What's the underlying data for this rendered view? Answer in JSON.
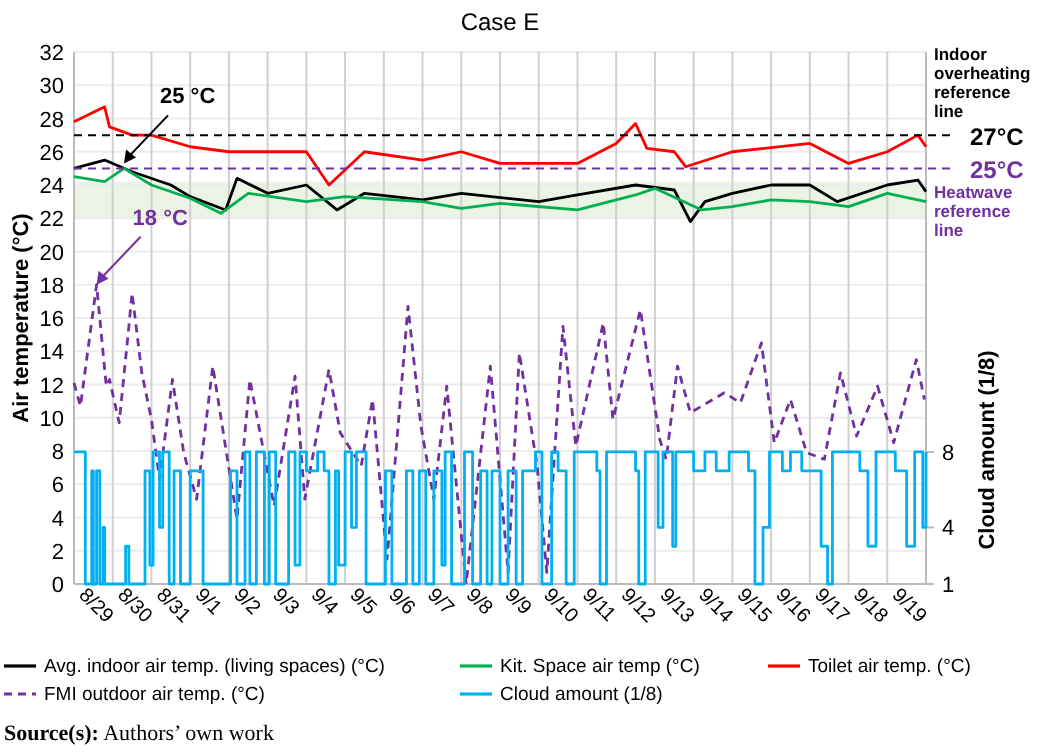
{
  "chart_data": {
    "type": "line",
    "title": "Case E",
    "ylabel": "Air temperature (°C)",
    "y2label": "Cloud amount (1/8)",
    "xlim": [
      "--08-29",
      "--09-20"
    ],
    "xticks": [
      {
        "value": "--08-29",
        "label": "8/29"
      },
      {
        "value": "--08-30",
        "label": "8/30"
      },
      {
        "value": "--08-31",
        "label": "8/31"
      },
      {
        "value": "--09-01",
        "label": "9/1"
      },
      {
        "value": "--09-02",
        "label": "9/2"
      },
      {
        "value": "--09-03",
        "label": "9/3"
      },
      {
        "value": "--09-04",
        "label": "9/4"
      },
      {
        "value": "--09-05",
        "label": "9/5"
      },
      {
        "value": "--09-06",
        "label": "9/6"
      },
      {
        "value": "--09-07",
        "label": "9/7"
      },
      {
        "value": "--09-08",
        "label": "9/8"
      },
      {
        "value": "--09-09",
        "label": "9/9"
      },
      {
        "value": "--09-10",
        "label": "9/10"
      },
      {
        "value": "--09-11",
        "label": "9/11"
      },
      {
        "value": "--09-12",
        "label": "9/12"
      },
      {
        "value": "--09-13",
        "label": "9/13"
      },
      {
        "value": "--09-14",
        "label": "9/14"
      },
      {
        "value": "--09-15",
        "label": "9/15"
      },
      {
        "value": "--09-16",
        "label": "9/16"
      },
      {
        "value": "--09-17",
        "label": "9/17"
      },
      {
        "value": "--09-18",
        "label": "9/18"
      },
      {
        "value": "--09-19",
        "label": "9/19"
      }
    ],
    "ylim": [
      0,
      32
    ],
    "yticks": [
      0,
      2,
      4,
      6,
      8,
      10,
      12,
      14,
      16,
      18,
      20,
      22,
      24,
      26,
      28,
      30,
      32
    ],
    "y2lim": [
      1,
      29.2
    ],
    "y2ticks": [
      8,
      4,
      1
    ],
    "grid": true,
    "legend": "bottom",
    "series": [
      {
        "name": "Avg. indoor air temp. (living spaces) (°C)",
        "color": "#000000",
        "line_style": "solid",
        "x": [
          "--08-29T00:00",
          "--08-29T19:00",
          "--08-30T12:00",
          "--08-31T12:00",
          "--09-01T00:00",
          "--09-01T22:00",
          "--09-02T05:00",
          "--09-03T00:00",
          "--09-04T00:00",
          "--09-04T19:00",
          "--09-05T12:00",
          "--09-07T00:00",
          "--09-08T00:00",
          "--09-10T00:00",
          "--09-11T00:00",
          "--09-12T12:00",
          "--09-13T12:00",
          "--09-13T22:00",
          "--09-14T07:00",
          "--09-15T00:00",
          "--09-16T00:00",
          "--09-17T00:00",
          "--09-17T17:00",
          "--09-19T00:00",
          "--09-19T19:00",
          "--09-20T00:00"
        ],
        "values": [
          25,
          25.5,
          24.8,
          24,
          23.3,
          22.5,
          24.4,
          23.5,
          24,
          22.5,
          23.5,
          23.1,
          23.5,
          23,
          23.4,
          24,
          23.7,
          21.8,
          23,
          23.5,
          24,
          24,
          23,
          24,
          24.3,
          23.6
        ]
      },
      {
        "name": "Kit. Space air temp (°C)",
        "color": "#00b050",
        "line_style": "solid",
        "x": [
          "--08-29T00:00",
          "--08-29T19:00",
          "--08-30T07:00",
          "--08-31T00:00",
          "--09-01T00:00",
          "--09-01T19:00",
          "--09-02T12:00",
          "--09-04T00:00",
          "--09-05T00:00",
          "--09-07T00:00",
          "--09-08T00:00",
          "--09-09T00:00",
          "--09-11T00:00",
          "--09-12T12:00",
          "--09-13T00:00",
          "--09-14T05:00",
          "--09-15T00:00",
          "--09-16T00:00",
          "--09-17T00:00",
          "--09-18T00:00",
          "--09-19T00:00",
          "--09-20T00:00"
        ],
        "values": [
          24.5,
          24.2,
          25,
          24,
          23.2,
          22.3,
          23.5,
          23,
          23.3,
          23,
          22.6,
          22.9,
          22.5,
          23.4,
          23.8,
          22.5,
          22.7,
          23.1,
          23,
          22.7,
          23.5,
          23
        ]
      },
      {
        "name": "Toilet air temp. (°C)",
        "color": "#ff0000",
        "line_style": "solid",
        "x": [
          "--08-29T00:00",
          "--08-29T19:00",
          "--08-29T22:00",
          "--08-30T12:00",
          "--08-31T00:00",
          "--09-01T00:00",
          "--09-02T00:00",
          "--09-03T00:00",
          "--09-04T00:00",
          "--09-04T14:00",
          "--09-05T12:00",
          "--09-07T00:00",
          "--09-08T00:00",
          "--09-09T00:00",
          "--09-10T00:00",
          "--09-11T00:00",
          "--09-12T00:00",
          "--09-12T12:00",
          "--09-12T19:00",
          "--09-13T12:00",
          "--09-13T19:00",
          "--09-15T00:00",
          "--09-17T00:00",
          "--09-18T00:00",
          "--09-19T00:00",
          "--09-19T19:00",
          "--09-20T00:00"
        ],
        "values": [
          27.8,
          28.7,
          27.5,
          27,
          27,
          26.3,
          26,
          26,
          26,
          24,
          26,
          25.5,
          26,
          25.3,
          25.3,
          25.3,
          26.5,
          27.7,
          26.2,
          26,
          25.1,
          26,
          26.5,
          25.3,
          26,
          27,
          26.3
        ]
      },
      {
        "name": "FMI outdoor air temp. (°C)",
        "color": "#7030a0",
        "line_style": "dashed",
        "x": [
          "--08-29T00:00",
          "--08-29T04:00",
          "--08-29T14:00",
          "--08-29T20:00",
          "--08-29T22:00",
          "--08-30T04:00",
          "--08-30T10:00",
          "--08-30T12:00",
          "--08-30T18:00",
          "--08-31T00:00",
          "--08-31T05:00",
          "--08-31T13:00",
          "--08-31T20:00",
          "--09-01T04:00",
          "--09-01T14:00",
          "--09-02T05:00",
          "--09-02T13:00",
          "--09-03T04:00",
          "--09-03T17:00",
          "--09-03T23:00",
          "--09-04T14:00",
          "--09-04T21:00",
          "--09-05T10:00",
          "--09-05T17:00",
          "--09-06T02:00",
          "--09-06T15:00",
          "--09-06T23:00",
          "--09-07T07:00",
          "--09-07T15:00",
          "--09-08T03:00",
          "--09-08T18:00",
          "--09-09T05:00",
          "--09-09T12:00",
          "--09-09T23:00",
          "--09-10T05:00",
          "--09-10T15:00",
          "--09-10T23:00",
          "--09-11T16:00",
          "--09-11T22:00",
          "--09-12T15:00",
          "--09-13T03:00",
          "--09-13T07:00",
          "--09-13T14:00",
          "--09-13T22:00",
          "--09-14T19:00",
          "--09-15T05:00",
          "--09-15T18:00",
          "--09-16T02:00",
          "--09-16T12:00",
          "--09-16T22:00",
          "--09-17T09:00",
          "--09-17T19:00",
          "--09-18T05:00",
          "--09-18T18:00",
          "--09-19T04:00",
          "--09-19T18:00",
          "--09-19T23:00"
        ],
        "values": [
          12.1,
          10.7,
          18,
          11.9,
          12.3,
          9.7,
          15.5,
          17.5,
          12.7,
          9.9,
          6.3,
          12.3,
          7.9,
          5.1,
          13.1,
          3.9,
          12.3,
          4.7,
          12.5,
          5.1,
          12.9,
          9.1,
          7.1,
          11.1,
          1.5,
          16.7,
          9.5,
          5.1,
          11.9,
          0,
          13.1,
          0.7,
          13.9,
          7.1,
          0.7,
          15.5,
          8.3,
          15.7,
          9.9,
          16.5,
          8.7,
          7.5,
          13.1,
          10.3,
          11.5,
          10.9,
          14.5,
          8.5,
          11.1,
          7.9,
          7.5,
          12.7,
          8.9,
          11.9,
          8.5,
          13.5,
          11.1
        ]
      },
      {
        "name": "Cloud amount (1/8)",
        "color": "#00b0f0",
        "type": "step",
        "axis": "y2",
        "line_style": "solid",
        "x": [
          "--08-29T00:00",
          "--08-29T07:00",
          "--08-29T11:00",
          "--08-29T12:00",
          "--08-29T14:00",
          "--08-29T16:00",
          "--08-29T18:00",
          "--08-29T19:00",
          "--08-30T08:00",
          "--08-30T10:00",
          "--08-30T20:00",
          "--08-30T23:00",
          "--08-31T01:00",
          "--08-31T05:00",
          "--08-31T07:00",
          "--08-31T11:00",
          "--08-31T14:00",
          "--08-31T18:00",
          "--08-31T22:00",
          "--09-01T00:00",
          "--09-01T08:00",
          "--09-01T22:00",
          "--09-02T01:00",
          "--09-02T05:00",
          "--09-02T10:00",
          "--09-02T13:00",
          "--09-02T17:00",
          "--09-02T22:00",
          "--09-03T01:00",
          "--09-03T05:00",
          "--09-03T13:00",
          "--09-03T17:00",
          "--09-03T20:00",
          "--09-04T00:00",
          "--09-04T07:00",
          "--09-04T11:00",
          "--09-04T14:00",
          "--09-04T18:00",
          "--09-04T20:00",
          "--09-05T00:00",
          "--09-05T04:00",
          "--09-05T07:00",
          "--09-05T13:00",
          "--09-06T01:00",
          "--09-06T05:00",
          "--09-06T14:00",
          "--09-06T18:00",
          "--09-06T22:00",
          "--09-07T02:00",
          "--09-07T07:00",
          "--09-07T12:00",
          "--09-07T14:00",
          "--09-07T18:00",
          "--09-08T02:00",
          "--09-08T07:00",
          "--09-08T12:00",
          "--09-08T16:00",
          "--09-08T19:00",
          "--09-09T00:00",
          "--09-09T05:00",
          "--09-09T10:00",
          "--09-09T14:00",
          "--09-09T22:00",
          "--09-10T02:00",
          "--09-10T08:00",
          "--09-10T12:00",
          "--09-10T17:00",
          "--09-10T22:00",
          "--09-11T12:00",
          "--09-11T14:00",
          "--09-11T18:00",
          "--09-12T12:00",
          "--09-12T14:00",
          "--09-12T18:00",
          "--09-13T02:00",
          "--09-13T05:00",
          "--09-13T11:00",
          "--09-13T13:00",
          "--09-14T00:00",
          "--09-14T07:00",
          "--09-14T14:00",
          "--09-14T22:00",
          "--09-15T10:00",
          "--09-15T14:00",
          "--09-15T19:00",
          "--09-15T23:00",
          "--09-16T07:00",
          "--09-16T12:00",
          "--09-16T19:00",
          "--09-17T07:00",
          "--09-17T11:00",
          "--09-17T14:00",
          "--09-18T07:00",
          "--09-18T12:00",
          "--09-18T17:00",
          "--09-19T05:00",
          "--09-19T12:00",
          "--09-19T17:00",
          "--09-19T22:00",
          "--09-20T00:00"
        ],
        "values": [
          8,
          1,
          7,
          1,
          7,
          1,
          4,
          1,
          3,
          1,
          7,
          2,
          8,
          4,
          8,
          1,
          7,
          1,
          1,
          7,
          1,
          1,
          7,
          1,
          8,
          1,
          8,
          1,
          8,
          1,
          8,
          2,
          8,
          7,
          8,
          7,
          1,
          7,
          2,
          8,
          4,
          8,
          1,
          7,
          1,
          7,
          1,
          7,
          1,
          7,
          2,
          8,
          1,
          8,
          1,
          7,
          1,
          7,
          1,
          7,
          1,
          7,
          8,
          1,
          8,
          7,
          1,
          8,
          7,
          1,
          8,
          7,
          1,
          8,
          4,
          8,
          3,
          8,
          7,
          8,
          7,
          8,
          7,
          1,
          4,
          8,
          7,
          8,
          7,
          3,
          1,
          8,
          7,
          3,
          8,
          7,
          3,
          8,
          4,
          8
        ]
      }
    ],
    "bands": [
      {
        "axis": "y",
        "from": 22,
        "to": 24.2,
        "color": "#e2f0d9"
      }
    ],
    "ref_lines": [
      {
        "axis": "y",
        "value": 27,
        "label": "27°C",
        "color": "#000000",
        "line_style": "dashed"
      },
      {
        "axis": "y",
        "value": 25,
        "label": "25°C",
        "color": "#7030a0",
        "line_style": "dashed"
      }
    ],
    "annotations": [
      {
        "text": "25 °C",
        "x": "--08-30T07:00",
        "y": 25.3
      },
      {
        "text": "18 °C",
        "x": "--08-29T14:00",
        "y": 18
      },
      "Indoor overheating reference line",
      "Heatwave reference line",
      "Source(s): Authors’ own work"
    ]
  }
}
